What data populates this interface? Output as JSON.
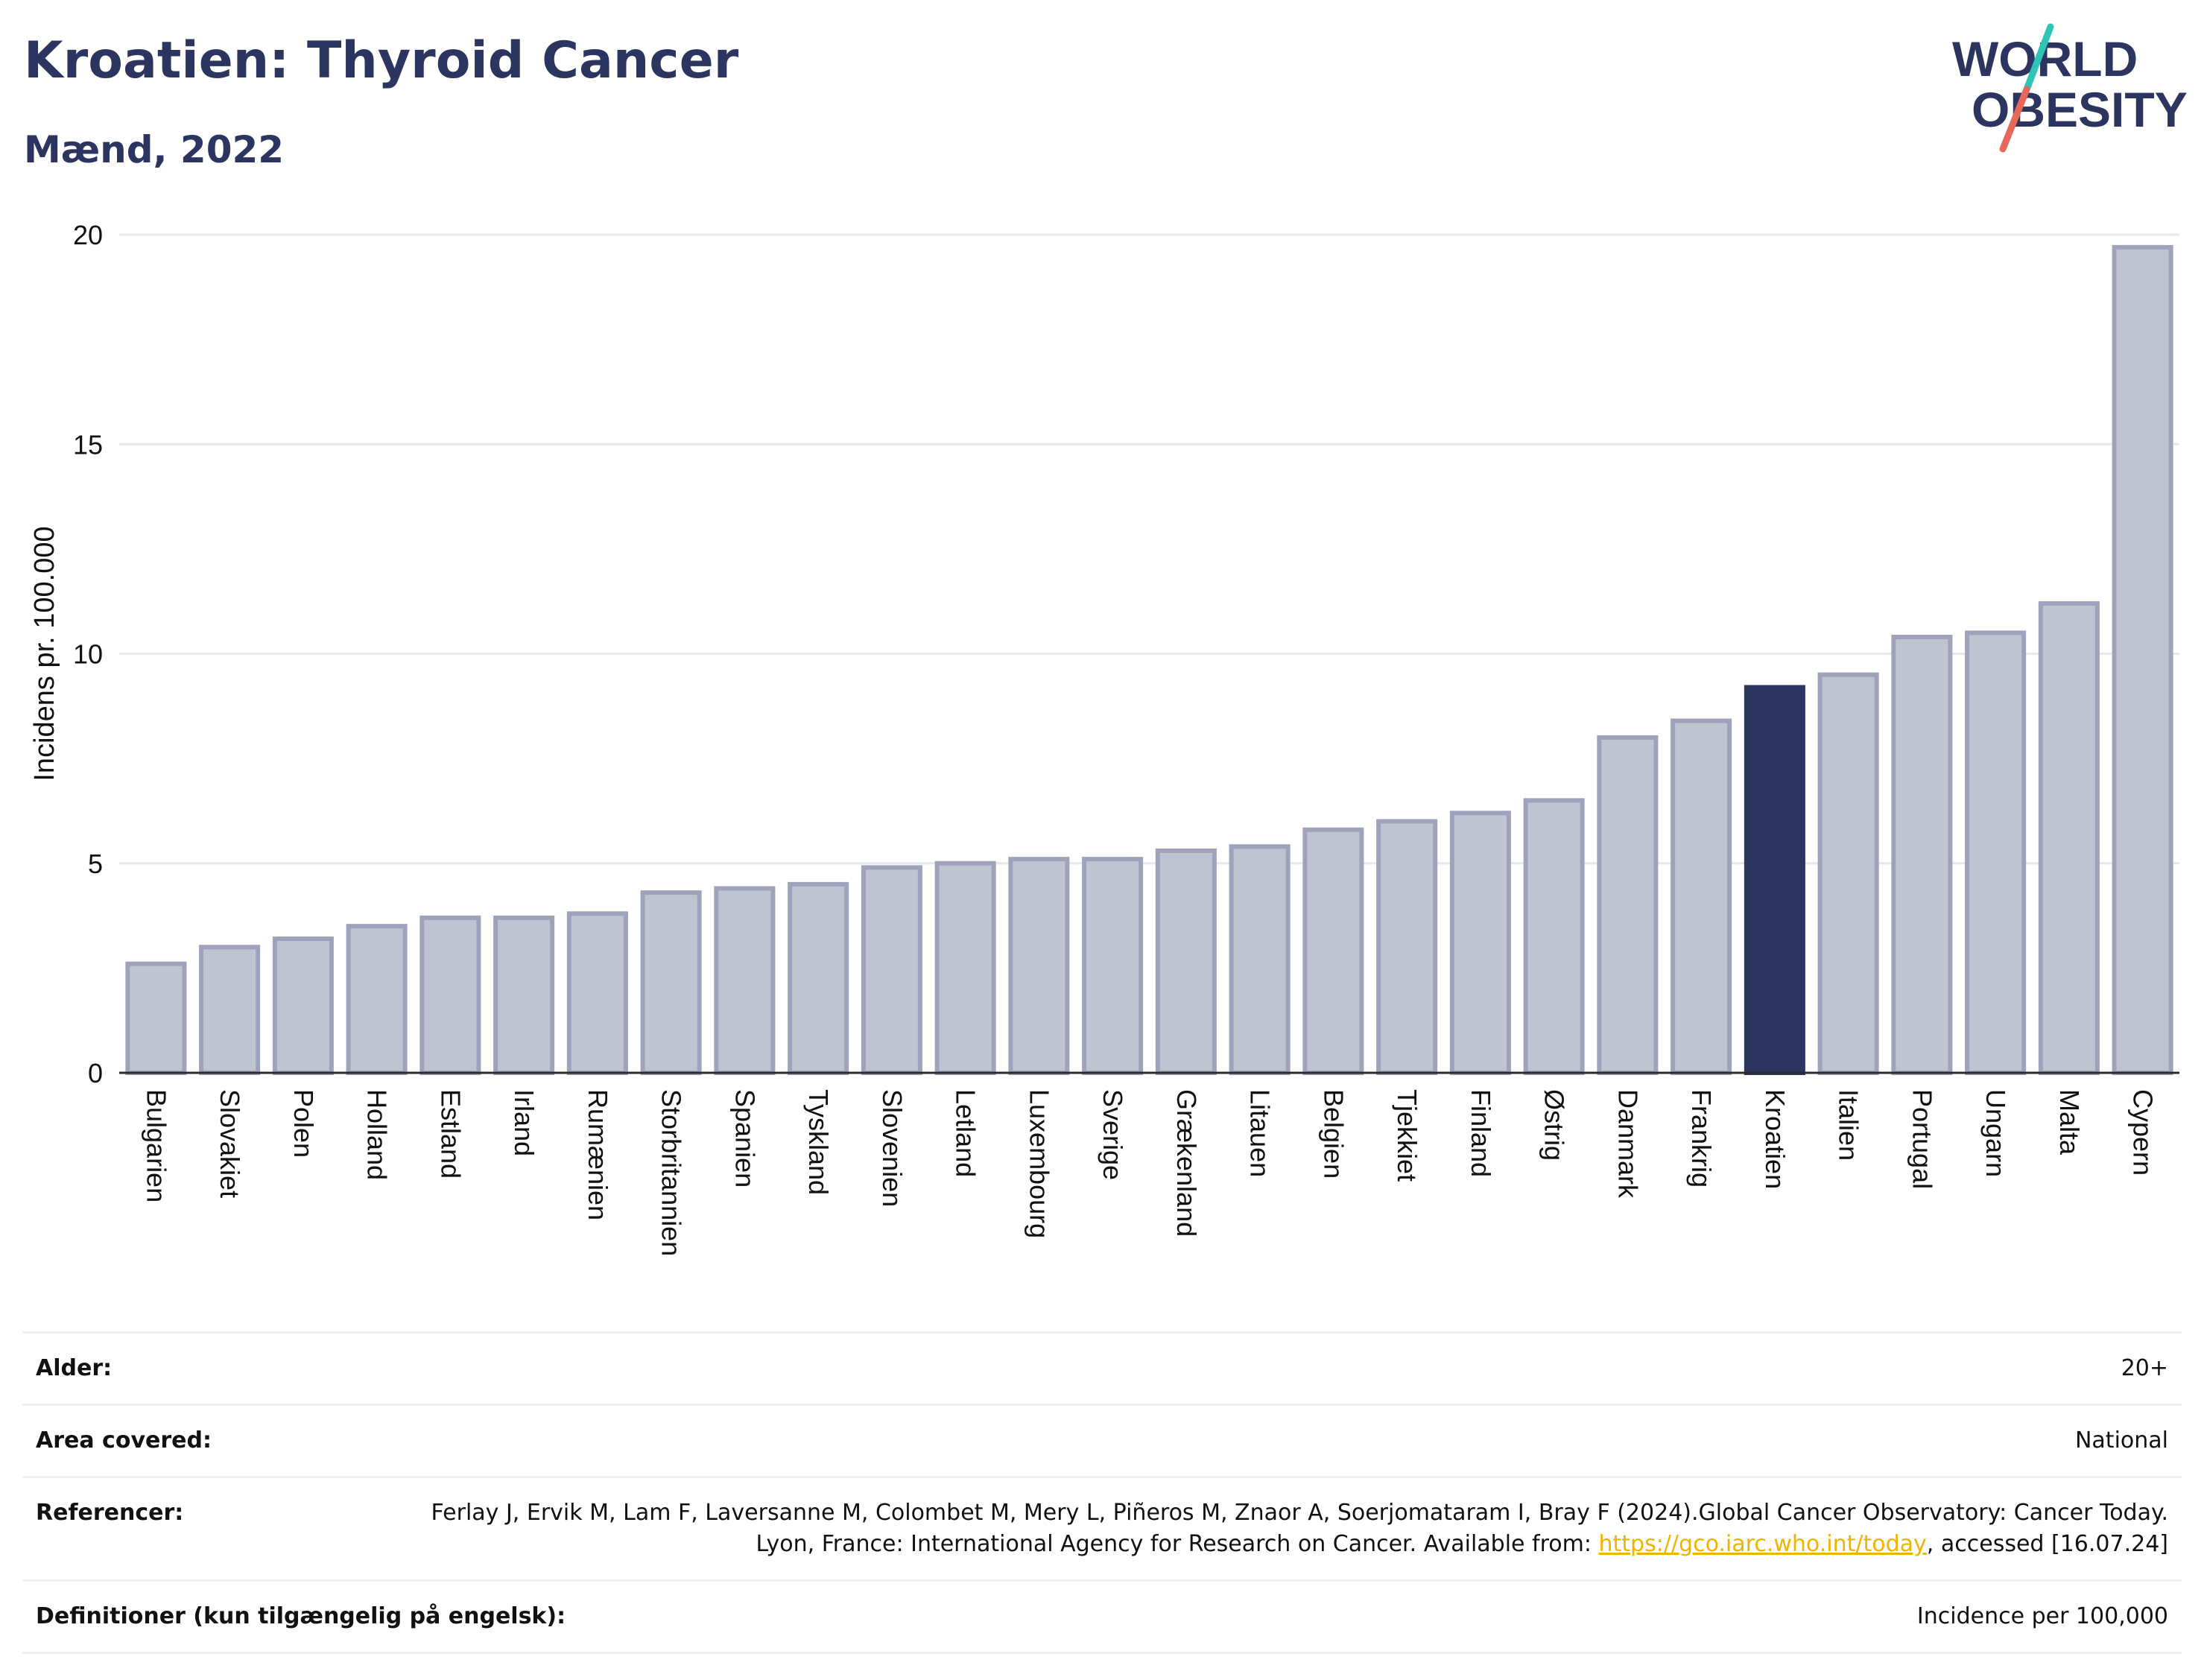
{
  "header": {
    "title": "Kroatien: Thyroid Cancer",
    "subtitle": "Mænd, 2022"
  },
  "logo": {
    "line1": "WORLD",
    "line2": "OBESITY",
    "colors": {
      "text": "#2b3560",
      "slash_top": "#2ec4b6",
      "slash_bottom": "#e8675a"
    }
  },
  "colors": {
    "bar": "#c0c3d0",
    "bar_border": "#9ea3bb",
    "highlight": "#2b3560",
    "grid": "#e6e8ee"
  },
  "chart_data": {
    "type": "bar",
    "ylabel": "Incidens pr. 100.000",
    "xlabel": "",
    "ylim": [
      0,
      20
    ],
    "yticks": [
      0,
      5,
      10,
      15,
      20
    ],
    "grid": true,
    "highlight": "Kroatien",
    "categories": [
      "Bulgarien",
      "Slovakiet",
      "Polen",
      "Holland",
      "Estland",
      "Irland",
      "Rumænien",
      "Storbritannien",
      "Spanien",
      "Tyskland",
      "Slovenien",
      "Letland",
      "Luxembourg",
      "Sverige",
      "Grækenland",
      "Litauen",
      "Belgien",
      "Tjekkiet",
      "Finland",
      "Østrig",
      "Danmark",
      "Frankrig",
      "Kroatien",
      "Italien",
      "Portugal",
      "Ungarn",
      "Malta",
      "Cypern"
    ],
    "values": [
      2.6,
      3.0,
      3.2,
      3.5,
      3.7,
      3.7,
      3.8,
      4.3,
      4.4,
      4.5,
      4.9,
      5.0,
      5.1,
      5.1,
      5.3,
      5.4,
      5.8,
      6.0,
      6.2,
      6.5,
      8.0,
      8.4,
      9.2,
      9.5,
      10.4,
      10.5,
      11.2,
      19.7
    ]
  },
  "meta": {
    "age_label": "Alder:",
    "age_value": "20+",
    "area_label": "Area covered:",
    "area_value": "National",
    "ref_label": "Referencer:",
    "ref_text_1": "Ferlay J, Ervik M, Lam F, Laversanne M, Colombet M, Mery L, Piñeros M, Znaor A, Soerjomataram I, Bray F (2024).Global Cancer Observatory: Cancer Today. Lyon, France: International Agency for Research on Cancer. Available from: ",
    "ref_link": "https://gco.iarc.who.int/today",
    "ref_text_2": ", accessed [16.07.24]",
    "def_label": "Definitioner (kun tilgængelig på engelsk):",
    "def_value": "Incidence per 100,000"
  }
}
